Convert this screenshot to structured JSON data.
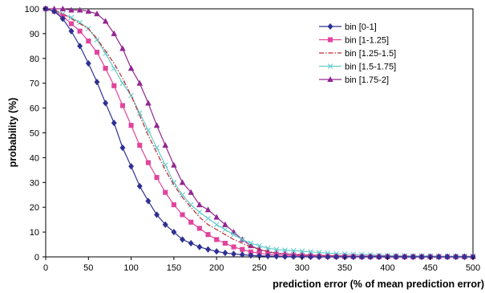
{
  "chart_data": {
    "type": "line",
    "title": "",
    "xlabel": "prediction error (% of mean prediction error)",
    "ylabel": "probability (%)",
    "xlim": [
      0,
      500
    ],
    "ylim": [
      0,
      100
    ],
    "x_ticks": [
      0,
      50,
      100,
      150,
      200,
      250,
      300,
      350,
      400,
      450,
      500
    ],
    "y_ticks": [
      0,
      10,
      20,
      30,
      40,
      50,
      60,
      70,
      80,
      90,
      100
    ],
    "grid": "none",
    "legend_position": "top-right",
    "x": [
      0,
      10,
      20,
      30,
      40,
      50,
      60,
      70,
      80,
      90,
      100,
      110,
      120,
      130,
      140,
      150,
      160,
      170,
      180,
      190,
      200,
      210,
      220,
      230,
      240,
      250,
      260,
      270,
      280,
      290,
      300,
      310,
      320,
      330,
      340,
      350,
      360,
      370,
      380,
      390,
      400,
      410,
      420,
      430,
      440,
      450,
      460,
      470,
      480,
      490,
      500
    ],
    "series": [
      {
        "name": "bin [0-1]",
        "color": "#2e3192",
        "marker": "diamond",
        "dash": "solid",
        "values": [
          100,
          99,
          96,
          91,
          85,
          78,
          70.5,
          62,
          54,
          44,
          36.5,
          28.5,
          22.5,
          17,
          13,
          10,
          7,
          5.5,
          4,
          3,
          2.2,
          1.6,
          1.2,
          0.9,
          0.6,
          0.4,
          0.3,
          0.2,
          0.1,
          0.1,
          0.1,
          0,
          0,
          0,
          0,
          0,
          0,
          0,
          0,
          0,
          0,
          0,
          0,
          0,
          0,
          0,
          0,
          0,
          0,
          0,
          0
        ]
      },
      {
        "name": "bin [1-1.25]",
        "color": "#e0449c",
        "marker": "square",
        "dash": "solid",
        "values": [
          100,
          99,
          97,
          94,
          91,
          87,
          82.5,
          76,
          69,
          61,
          53,
          45,
          38,
          32,
          26,
          21,
          17,
          14,
          11.5,
          9,
          7,
          5.5,
          4,
          3,
          2,
          1.5,
          1,
          0.8,
          0.6,
          0.5,
          0.4,
          0.3,
          0.2,
          0.2,
          0.1,
          0.1,
          0.1,
          0,
          0,
          0,
          0,
          0,
          0,
          0,
          0,
          0,
          0,
          0,
          0,
          0,
          0
        ]
      },
      {
        "name": "bin [1.25-1.5]",
        "color": "#c1272d",
        "marker": "none",
        "dash": "dashdot",
        "values": [
          100,
          99.5,
          98,
          96,
          94,
          92,
          88,
          83,
          78,
          72,
          65,
          57,
          49,
          42,
          35,
          29,
          24,
          20,
          16,
          13,
          11,
          9,
          7,
          5.5,
          4,
          3,
          2.2,
          1.6,
          1.2,
          1,
          0.8,
          0.6,
          0.5,
          0.4,
          0.3,
          0.2,
          0.2,
          0.1,
          0.1,
          0.1,
          0.1,
          0,
          0,
          0,
          0,
          0,
          0,
          0,
          0,
          0,
          0
        ]
      },
      {
        "name": "bin [1.5-1.75]",
        "color": "#66cccc",
        "marker": "x",
        "dash": "solid",
        "values": [
          100,
          99,
          98,
          96.5,
          94.5,
          92,
          87.5,
          82,
          76,
          70,
          65,
          58,
          51,
          44,
          37,
          30,
          25,
          21,
          18,
          15.5,
          13,
          11,
          9,
          7,
          5.5,
          4.5,
          3.5,
          3,
          2.7,
          2.5,
          2.3,
          2,
          1.8,
          1.5,
          1.3,
          1.2,
          1,
          0.9,
          0.8,
          0.7,
          0.6,
          0.5,
          0.5,
          0.4,
          0.4,
          0.4,
          0.3,
          0.3,
          0.3,
          0.3,
          0.3
        ]
      },
      {
        "name": "bin [1.75-2]",
        "color": "#92278f",
        "marker": "triangle",
        "dash": "solid",
        "values": [
          100,
          100,
          100,
          99.5,
          99.5,
          99,
          98,
          95,
          90,
          84,
          76,
          70,
          62,
          53,
          45,
          37,
          30,
          26,
          21,
          19,
          16,
          13,
          10,
          7,
          4.5,
          3,
          2,
          1.5,
          1.2,
          1,
          0.8,
          0.7,
          0.6,
          0.5,
          0.4,
          0.4,
          0.3,
          0.3,
          0.3,
          0.3,
          0.3,
          0.3,
          0.2,
          0.2,
          0.2,
          0.2,
          0.2,
          0.2,
          0.2,
          0.2,
          0.2
        ]
      }
    ]
  }
}
